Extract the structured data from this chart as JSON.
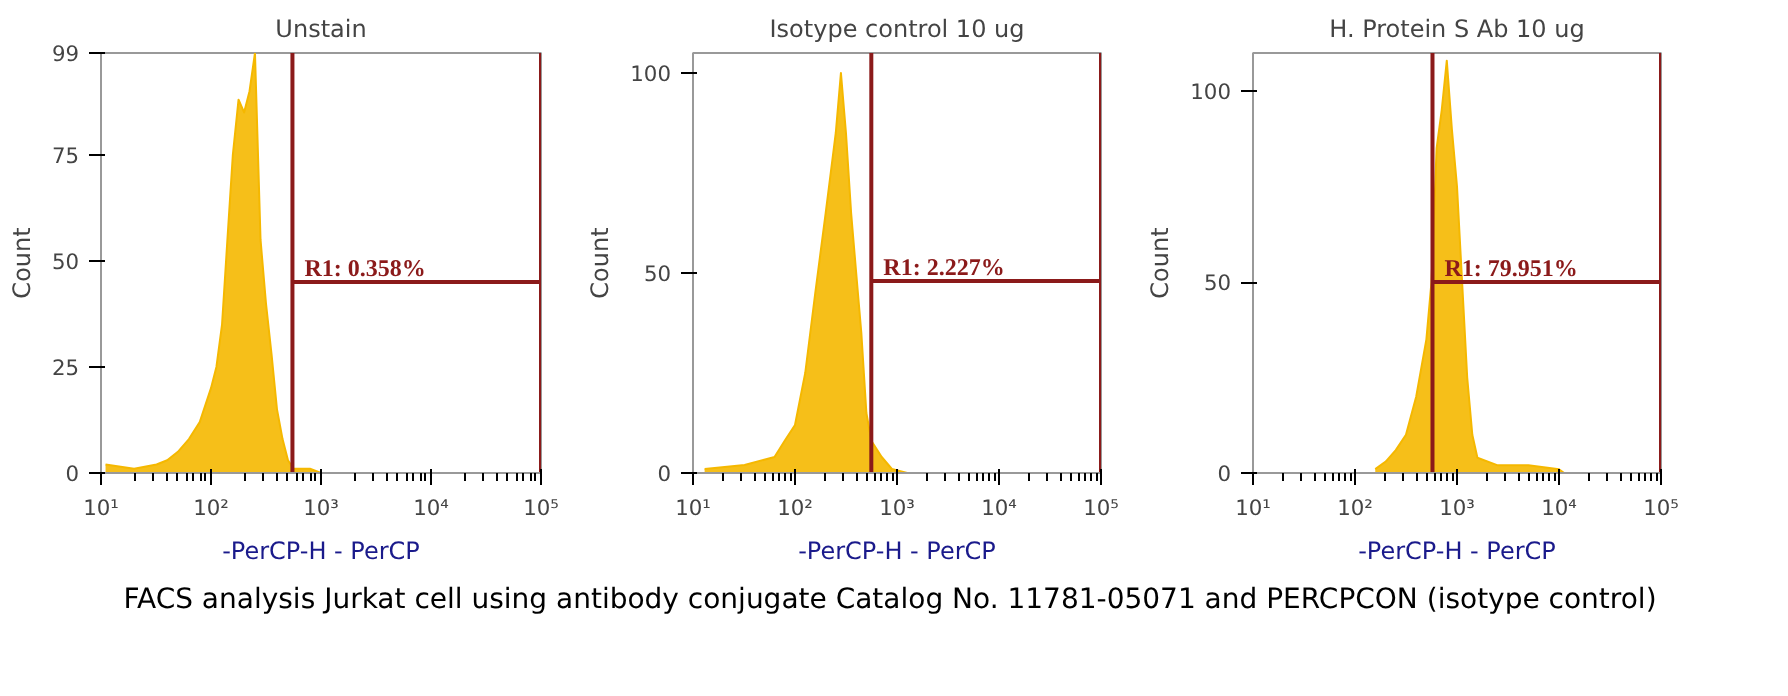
{
  "chart_data": [
    {
      "type": "area",
      "title": "Unstain",
      "xlabel": "-PerCP-H - PerCP",
      "ylabel": "Count",
      "log": "x",
      "grid": false,
      "xlim": [
        10,
        100000
      ],
      "xticks": [
        {
          "value": 10,
          "label": "10¹"
        },
        {
          "value": 100,
          "label": "10²"
        },
        {
          "value": 1000,
          "label": "10³"
        },
        {
          "value": 10000,
          "label": "10⁴"
        },
        {
          "value": 100000,
          "label": "10⁵"
        }
      ],
      "ylim": [
        0,
        99
      ],
      "yticks": [
        0,
        25,
        50,
        75,
        99
      ],
      "series": [
        {
          "color": "#f5b800",
          "x": [
            11,
            20,
            32,
            40,
            50,
            63,
            79,
            100,
            112,
            126,
            141,
            158,
            178,
            200,
            224,
            251,
            282,
            316,
            355,
            398,
            447,
            501,
            562,
            794,
            1000
          ],
          "values": [
            2,
            1,
            2,
            3,
            5,
            8,
            12,
            20,
            25,
            35,
            55,
            75,
            88,
            85,
            90,
            99,
            55,
            40,
            28,
            15,
            8,
            3,
            1,
            1,
            0
          ]
        },
        {
          "type": "line",
          "color": "#8b1a1a",
          "x": [
            550,
            100000
          ],
          "values": [
            45,
            45
          ]
        }
      ],
      "ref_lines": [
        {
          "axis": "x",
          "value": 550,
          "color": "#8b1a1a"
        },
        {
          "axis": "x",
          "value": 100000,
          "color": "#8b1a1a"
        }
      ],
      "annotations": [
        {
          "text": "R1: 0.358%",
          "x": 550,
          "y": 45
        }
      ]
    },
    {
      "type": "area",
      "title": "Isotype control 10 ug",
      "xlabel": "-PerCP-H - PerCP",
      "ylabel": "Count",
      "log": "x",
      "grid": false,
      "xlim": [
        10,
        100000
      ],
      "xticks": [
        {
          "value": 10,
          "label": "10¹"
        },
        {
          "value": 100,
          "label": "10²"
        },
        {
          "value": 1000,
          "label": "10³"
        },
        {
          "value": 10000,
          "label": "10⁴"
        },
        {
          "value": 100000,
          "label": "10⁵"
        }
      ],
      "ylim": [
        0,
        105
      ],
      "yticks": [
        0,
        50,
        100
      ],
      "series": [
        {
          "color": "#f5b800",
          "x": [
            13,
            32,
            63,
            79,
            100,
            126,
            158,
            200,
            224,
            251,
            282,
            316,
            355,
            398,
            447,
            501,
            562,
            708,
            891,
            1259
          ],
          "values": [
            1,
            2,
            4,
            8,
            12,
            25,
            45,
            65,
            75,
            85,
            100,
            85,
            65,
            50,
            35,
            15,
            8,
            4,
            1,
            0
          ]
        },
        {
          "type": "line",
          "color": "#8b1a1a",
          "x": [
            560,
            100000
          ],
          "values": [
            48,
            48
          ]
        }
      ],
      "ref_lines": [
        {
          "axis": "x",
          "value": 560,
          "color": "#8b1a1a"
        },
        {
          "axis": "x",
          "value": 100000,
          "color": "#8b1a1a"
        }
      ],
      "annotations": [
        {
          "text": "R1: 2.227%",
          "x": 560,
          "y": 48
        }
      ]
    },
    {
      "type": "area",
      "title": "H. Protein S Ab 10 ug",
      "xlabel": "-PerCP-H - PerCP",
      "ylabel": "Count",
      "log": "x",
      "grid": false,
      "xlim": [
        10,
        100000
      ],
      "xticks": [
        {
          "value": 10,
          "label": "10¹"
        },
        {
          "value": 100,
          "label": "10²"
        },
        {
          "value": 1000,
          "label": "10³"
        },
        {
          "value": 10000,
          "label": "10⁴"
        },
        {
          "value": 100000,
          "label": "10⁵"
        }
      ],
      "ylim": [
        0,
        110
      ],
      "yticks": [
        0,
        50,
        100
      ],
      "series": [
        {
          "color": "#f5b800",
          "x": [
            158,
            200,
            251,
            316,
            398,
            501,
            562,
            631,
            708,
            794,
            891,
            1000,
            1122,
            1259,
            1413,
            1585,
            2512,
            5012,
            10000,
            11220
          ],
          "values": [
            1,
            3,
            6,
            10,
            20,
            35,
            50,
            85,
            95,
            108,
            90,
            75,
            50,
            25,
            10,
            4,
            2,
            2,
            1,
            0
          ]
        },
        {
          "type": "line",
          "color": "#8b1a1a",
          "x": [
            575,
            100000
          ],
          "values": [
            50,
            50
          ]
        }
      ],
      "ref_lines": [
        {
          "axis": "x",
          "value": 575,
          "color": "#8b1a1a"
        },
        {
          "axis": "x",
          "value": 100000,
          "color": "#8b1a1a"
        }
      ],
      "annotations": [
        {
          "text": "R1: 79.951%",
          "x": 575,
          "y": 50
        },
        "FACS analysis Jurkat cell using antibody conjugate Catalog No. 11781-05071 and PERCPCON (isotype control)"
      ]
    }
  ]
}
